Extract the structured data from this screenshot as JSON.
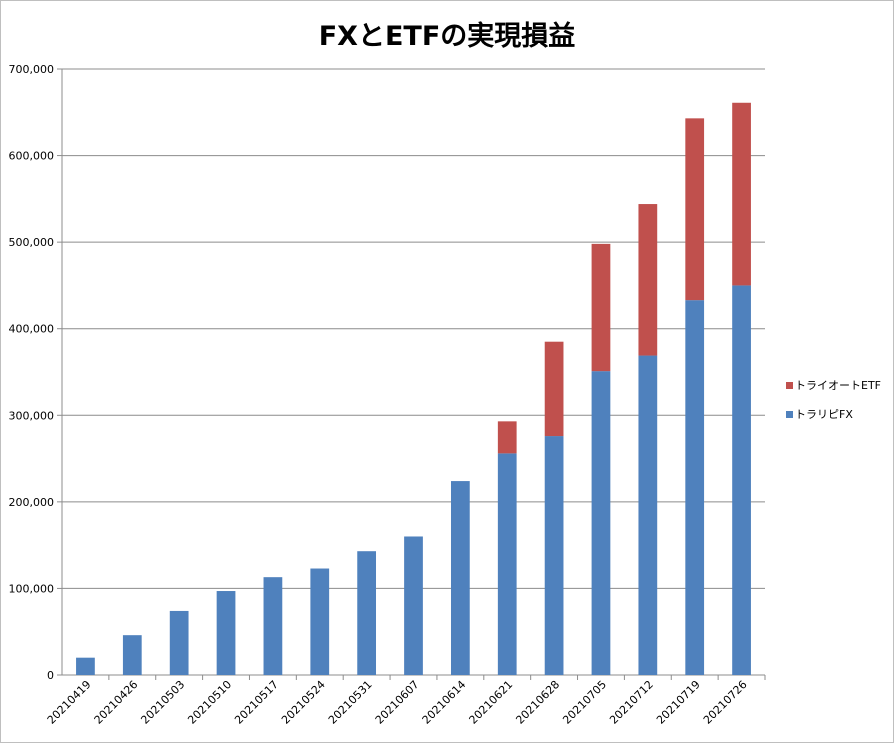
{
  "chart_data": {
    "type": "bar",
    "stacked": true,
    "title": "FXとETFの実現損益",
    "xlabel": "",
    "ylabel": "",
    "categories": [
      "20210419",
      "20210426",
      "20210503",
      "20210510",
      "20210517",
      "20210524",
      "20210531",
      "20210607",
      "20210614",
      "20210621",
      "20210628",
      "20210705",
      "20210712",
      "20210719",
      "20210726"
    ],
    "series": [
      {
        "name": "トラリピFX",
        "color": "#4f81bd",
        "values": [
          20000,
          46000,
          74000,
          97000,
          113000,
          123000,
          143000,
          160000,
          224000,
          256000,
          276000,
          351000,
          369000,
          433000,
          450000
        ]
      },
      {
        "name": "トライオートETF",
        "color": "#c0504d",
        "values": [
          0,
          0,
          0,
          0,
          0,
          0,
          0,
          0,
          0,
          37000,
          109000,
          147000,
          175000,
          210000,
          211000
        ]
      }
    ],
    "ylim": [
      0,
      700000
    ],
    "yticks": [
      "0",
      "100,000",
      "200,000",
      "300,000",
      "400,000",
      "500,000",
      "600,000",
      "700,000"
    ],
    "grid": true,
    "legend_position": "right"
  }
}
